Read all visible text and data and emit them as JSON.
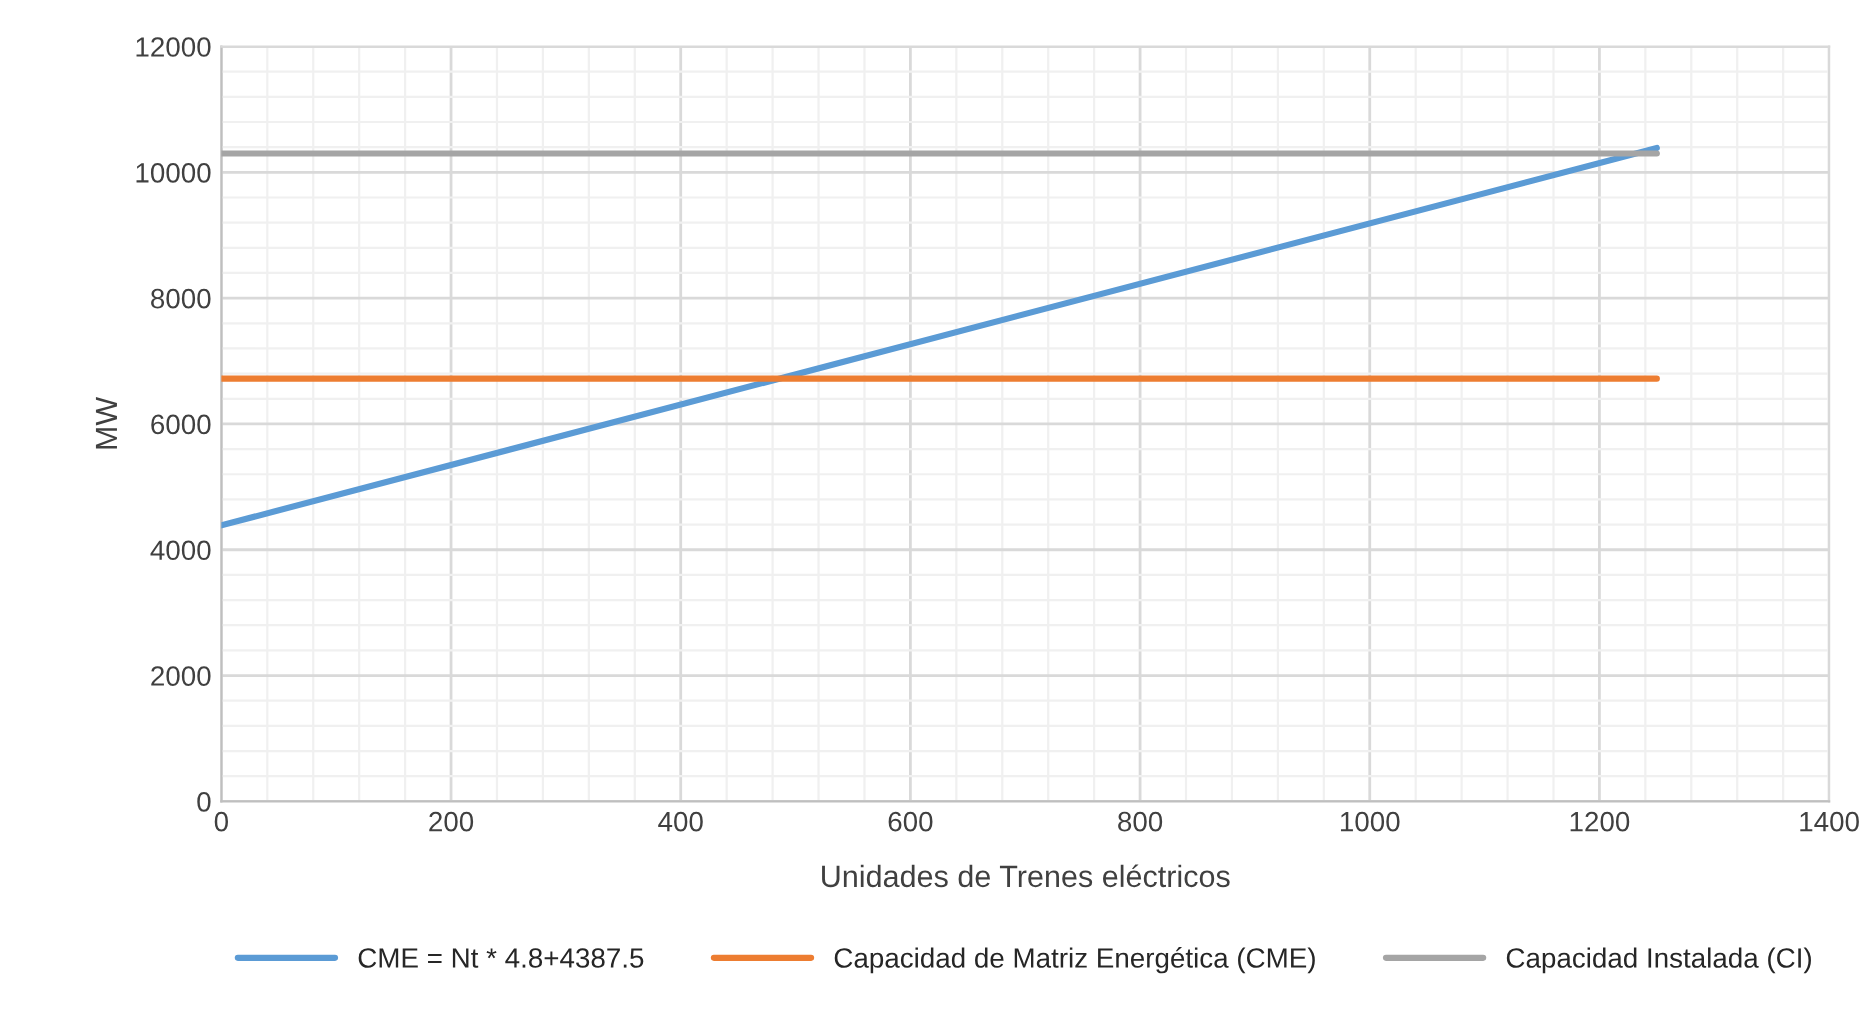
{
  "chart_data": {
    "type": "line",
    "xlabel": "Unidades de Trenes eléctricos",
    "ylabel": "MW",
    "x": [
      0,
      1250
    ],
    "series": [
      {
        "name": "CME = Nt * 4.8+4387.5",
        "color": "#5b9bd5",
        "values": [
          4387.5,
          10387.5
        ]
      },
      {
        "name": "Capacidad de Matriz Energética (CME)",
        "color": "#ed7d31",
        "values": [
          6720,
          6720
        ]
      },
      {
        "name": "Capacidad Instalada (CI)",
        "color": "#a5a5a5",
        "values": [
          10300,
          10300
        ]
      }
    ],
    "xlim": [
      0,
      1400
    ],
    "xticks": [
      0,
      200,
      400,
      600,
      800,
      1000,
      1200,
      1400
    ],
    "ylim": [
      0,
      12000
    ],
    "yticks": [
      0,
      2000,
      4000,
      6000,
      8000,
      10000,
      12000
    ],
    "grid": true,
    "legend": "bottom",
    "marker": "none",
    "line_style": "solid"
  }
}
